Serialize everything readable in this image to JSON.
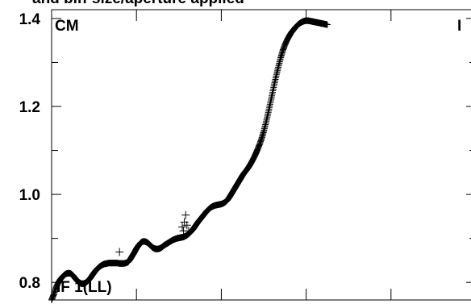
{
  "chart_data": {
    "type": "scatter",
    "title": "",
    "title_fragment": "and bin-size/aperture applied",
    "corner_labels": {
      "top_left": "CM",
      "top_right": "I",
      "bottom_left": "IF 1(LL)"
    },
    "xlabel": "",
    "ylabel": "",
    "xlim": [
      0,
      100
    ],
    "ylim": [
      0.76,
      1.42
    ],
    "y_ticks": [
      0.8,
      1.0,
      1.2,
      1.4
    ],
    "y_tick_labels": [
      "0.8",
      "1.0",
      "1.2",
      "1.4"
    ],
    "x_ticks": [
      20,
      40,
      60,
      80,
      100
    ],
    "marker": "+",
    "color": "#000000",
    "series": [
      {
        "values": [
          [
            0.0,
            0.76
          ],
          [
            0.5,
            0.772
          ],
          [
            1.0,
            0.787
          ],
          [
            1.5,
            0.798
          ],
          [
            2.0,
            0.806
          ],
          [
            2.5,
            0.812
          ],
          [
            3.0,
            0.817
          ],
          [
            3.5,
            0.82
          ],
          [
            4.0,
            0.821
          ],
          [
            4.5,
            0.82
          ],
          [
            5.0,
            0.816
          ],
          [
            5.5,
            0.81
          ],
          [
            6.0,
            0.804
          ],
          [
            6.5,
            0.8
          ],
          [
            7.0,
            0.797
          ],
          [
            7.5,
            0.797
          ],
          [
            8.0,
            0.799
          ],
          [
            8.5,
            0.803
          ],
          [
            9.0,
            0.808
          ],
          [
            9.5,
            0.815
          ],
          [
            10.0,
            0.822
          ],
          [
            10.5,
            0.828
          ],
          [
            11.0,
            0.833
          ],
          [
            11.5,
            0.837
          ],
          [
            12.0,
            0.84
          ],
          [
            12.5,
            0.842
          ],
          [
            13.0,
            0.843
          ],
          [
            13.5,
            0.844
          ],
          [
            14.0,
            0.844
          ],
          [
            14.5,
            0.844
          ],
          [
            15.0,
            0.844
          ],
          [
            15.5,
            0.844
          ],
          [
            16.0,
            0.843
          ],
          [
            16.5,
            0.843
          ],
          [
            17.0,
            0.843
          ],
          [
            17.5,
            0.844
          ],
          [
            18.0,
            0.846
          ],
          [
            18.5,
            0.852
          ],
          [
            19.0,
            0.86
          ],
          [
            19.5,
            0.868
          ],
          [
            20.0,
            0.877
          ],
          [
            20.5,
            0.884
          ],
          [
            21.0,
            0.89
          ],
          [
            21.5,
            0.893
          ],
          [
            22.0,
            0.893
          ],
          [
            22.5,
            0.891
          ],
          [
            23.0,
            0.887
          ],
          [
            23.5,
            0.882
          ],
          [
            24.0,
            0.878
          ],
          [
            24.5,
            0.876
          ],
          [
            25.0,
            0.876
          ],
          [
            25.5,
            0.877
          ],
          [
            26.0,
            0.88
          ],
          [
            26.5,
            0.884
          ],
          [
            27.0,
            0.887
          ],
          [
            27.5,
            0.89
          ],
          [
            28.0,
            0.893
          ],
          [
            28.5,
            0.896
          ],
          [
            29.0,
            0.898
          ],
          [
            29.5,
            0.9
          ],
          [
            30.0,
            0.901
          ],
          [
            30.5,
            0.902
          ],
          [
            31.0,
            0.903
          ],
          [
            31.5,
            0.905
          ],
          [
            32.0,
            0.908
          ],
          [
            32.5,
            0.912
          ],
          [
            33.0,
            0.917
          ],
          [
            33.5,
            0.923
          ],
          [
            34.0,
            0.93
          ],
          [
            34.5,
            0.937
          ],
          [
            35.0,
            0.943
          ],
          [
            35.5,
            0.949
          ],
          [
            36.0,
            0.955
          ],
          [
            36.5,
            0.961
          ],
          [
            37.0,
            0.966
          ],
          [
            37.5,
            0.97
          ],
          [
            38.0,
            0.973
          ],
          [
            38.5,
            0.975
          ],
          [
            39.0,
            0.976
          ],
          [
            39.5,
            0.977
          ],
          [
            40.0,
            0.978
          ],
          [
            40.5,
            0.98
          ],
          [
            41.0,
            0.983
          ],
          [
            41.5,
            0.988
          ],
          [
            42.0,
            0.995
          ],
          [
            42.5,
            1.003
          ],
          [
            43.0,
            1.011
          ],
          [
            43.5,
            1.019
          ],
          [
            44.0,
            1.027
          ],
          [
            44.5,
            1.035
          ],
          [
            45.0,
            1.043
          ],
          [
            45.5,
            1.05
          ],
          [
            46.0,
            1.056
          ],
          [
            46.5,
            1.063
          ],
          [
            47.0,
            1.071
          ],
          [
            47.5,
            1.08
          ],
          [
            48.0,
            1.09
          ],
          [
            48.5,
            1.101
          ],
          [
            49.0,
            1.113
          ],
          [
            49.5,
            1.127
          ],
          [
            50.0,
            1.143
          ],
          [
            50.5,
            1.162
          ],
          [
            51.0,
            1.183
          ],
          [
            51.5,
            1.205
          ],
          [
            52.0,
            1.228
          ],
          [
            52.5,
            1.251
          ],
          [
            53.0,
            1.272
          ],
          [
            53.5,
            1.292
          ],
          [
            54.0,
            1.311
          ],
          [
            54.5,
            1.327
          ],
          [
            55.0,
            1.34
          ],
          [
            55.5,
            1.351
          ],
          [
            56.0,
            1.36
          ],
          [
            56.5,
            1.368
          ],
          [
            57.0,
            1.374
          ],
          [
            57.5,
            1.38
          ],
          [
            58.0,
            1.385
          ],
          [
            58.5,
            1.389
          ],
          [
            59.0,
            1.392
          ],
          [
            59.5,
            1.394
          ],
          [
            60.0,
            1.395
          ],
          [
            60.5,
            1.395
          ],
          [
            61.0,
            1.394
          ],
          [
            61.5,
            1.393
          ],
          [
            62.0,
            1.392
          ],
          [
            62.5,
            1.391
          ],
          [
            63.0,
            1.39
          ],
          [
            63.5,
            1.389
          ],
          [
            64.0,
            1.388
          ],
          [
            64.5,
            1.387
          ],
          [
            65.0,
            1.386
          ]
        ],
        "outliers": [
          [
            16.0,
            0.869
          ],
          [
            30.8,
            0.926
          ],
          [
            31.3,
            0.937
          ],
          [
            31.6,
            0.953
          ],
          [
            31.9,
            0.93
          ],
          [
            31.1,
            0.917
          ],
          [
            32.3,
            0.917
          ]
        ]
      }
    ]
  }
}
